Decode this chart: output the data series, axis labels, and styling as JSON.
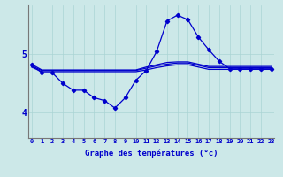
{
  "xlabel": "Graphe des températures (°c)",
  "background_color": "#cce8e8",
  "grid_color": "#aad4d4",
  "line_color": "#0000cc",
  "xticks": [
    0,
    1,
    2,
    3,
    4,
    5,
    6,
    7,
    8,
    9,
    10,
    11,
    12,
    13,
    14,
    15,
    16,
    17,
    18,
    19,
    20,
    21,
    22,
    23
  ],
  "yticks": [
    4,
    5
  ],
  "ylim": [
    3.55,
    5.85
  ],
  "xlim": [
    -0.3,
    23.3
  ],
  "figwidth": 3.2,
  "figheight": 2.0,
  "dpi": 100,
  "temp_x": [
    0,
    1,
    2,
    3,
    4,
    5,
    6,
    7,
    8,
    9,
    10,
    11,
    12,
    13,
    14,
    15,
    16,
    17,
    18,
    19,
    20,
    21,
    22,
    23
  ],
  "temp_y": [
    4.82,
    4.68,
    4.68,
    4.5,
    4.38,
    4.38,
    4.25,
    4.2,
    4.07,
    4.25,
    4.55,
    4.72,
    5.05,
    5.58,
    5.68,
    5.6,
    5.3,
    5.08,
    4.88,
    4.75,
    4.75,
    4.75,
    4.75,
    4.75
  ],
  "flat1_x": [
    0,
    1,
    2,
    3,
    4,
    5,
    6,
    7,
    8,
    9,
    10,
    11,
    12,
    13,
    14,
    15,
    16,
    17,
    18,
    19,
    20,
    21,
    22,
    23
  ],
  "flat1_y": [
    4.83,
    4.73,
    4.73,
    4.73,
    4.73,
    4.73,
    4.73,
    4.73,
    4.73,
    4.73,
    4.73,
    4.78,
    4.82,
    4.86,
    4.87,
    4.87,
    4.83,
    4.79,
    4.79,
    4.79,
    4.79,
    4.79,
    4.79,
    4.79
  ],
  "flat2_x": [
    0,
    1,
    2,
    3,
    4,
    5,
    6,
    7,
    8,
    9,
    10,
    11,
    12,
    13,
    14,
    15,
    16,
    17,
    18,
    19,
    20,
    21,
    22,
    23
  ],
  "flat2_y": [
    4.8,
    4.72,
    4.72,
    4.72,
    4.72,
    4.72,
    4.72,
    4.72,
    4.72,
    4.72,
    4.72,
    4.76,
    4.8,
    4.83,
    4.85,
    4.85,
    4.81,
    4.77,
    4.77,
    4.77,
    4.77,
    4.77,
    4.77,
    4.77
  ],
  "flat3_x": [
    0,
    1,
    2,
    3,
    4,
    5,
    6,
    7,
    8,
    9,
    10,
    11,
    12,
    13,
    14,
    15,
    16,
    17,
    18,
    19,
    20,
    21,
    22,
    23
  ],
  "flat3_y": [
    4.78,
    4.7,
    4.7,
    4.7,
    4.7,
    4.7,
    4.7,
    4.7,
    4.7,
    4.7,
    4.7,
    4.73,
    4.77,
    4.8,
    4.82,
    4.82,
    4.78,
    4.74,
    4.74,
    4.74,
    4.74,
    4.74,
    4.74,
    4.74
  ]
}
